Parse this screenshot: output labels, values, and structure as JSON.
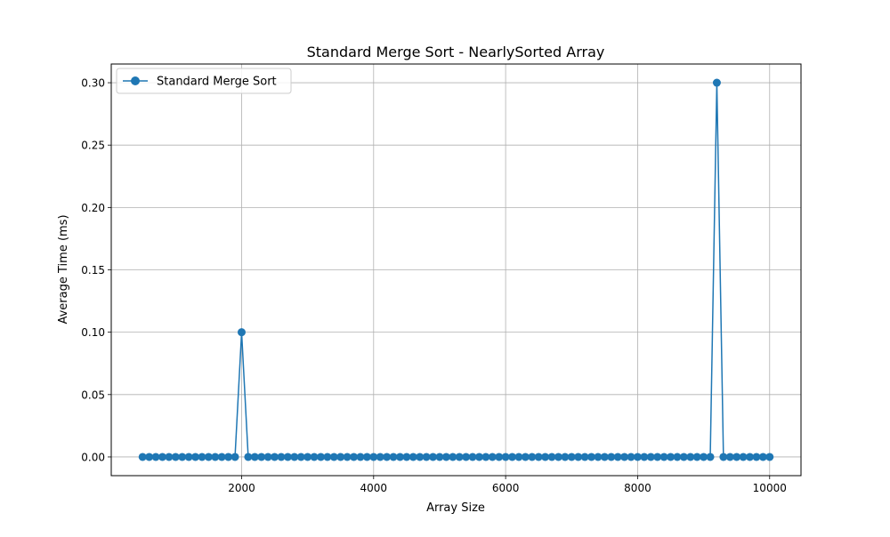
{
  "chart_data": {
    "type": "line",
    "title": "Standard Merge Sort - NearlySorted Array",
    "xlabel": "Array Size",
    "ylabel": "Average Time (ms)",
    "xlim": [
      25,
      10475
    ],
    "ylim": [
      -0.015,
      0.315
    ],
    "xticks": [
      2000,
      4000,
      6000,
      8000,
      10000
    ],
    "xtick_labels": [
      "2000",
      "4000",
      "6000",
      "8000",
      "10000"
    ],
    "yticks": [
      0.0,
      0.05,
      0.1,
      0.15,
      0.2,
      0.25,
      0.3
    ],
    "ytick_labels": [
      "0.00",
      "0.05",
      "0.10",
      "0.15",
      "0.20",
      "0.25",
      "0.30"
    ],
    "grid": true,
    "legend_position": "upper-left",
    "series": [
      {
        "name": "Standard Merge Sort",
        "color": "#1f77b4",
        "marker": "circle",
        "x": [
          500,
          600,
          700,
          800,
          900,
          1000,
          1100,
          1200,
          1300,
          1400,
          1500,
          1600,
          1700,
          1800,
          1900,
          2000,
          2100,
          2200,
          2300,
          2400,
          2500,
          2600,
          2700,
          2800,
          2900,
          3000,
          3100,
          3200,
          3300,
          3400,
          3500,
          3600,
          3700,
          3800,
          3900,
          4000,
          4100,
          4200,
          4300,
          4400,
          4500,
          4600,
          4700,
          4800,
          4900,
          5000,
          5100,
          5200,
          5300,
          5400,
          5500,
          5600,
          5700,
          5800,
          5900,
          6000,
          6100,
          6200,
          6300,
          6400,
          6500,
          6600,
          6700,
          6800,
          6900,
          7000,
          7100,
          7200,
          7300,
          7400,
          7500,
          7600,
          7700,
          7800,
          7900,
          8000,
          8100,
          8200,
          8300,
          8400,
          8500,
          8600,
          8700,
          8800,
          8900,
          9000,
          9100,
          9200,
          9300,
          9400,
          9500,
          9600,
          9700,
          9800,
          9900,
          10000
        ],
        "y": [
          0.0,
          0.0,
          0.0,
          0.0,
          0.0,
          0.0,
          0.0,
          0.0,
          0.0,
          0.0,
          0.0,
          0.0,
          0.0,
          0.0,
          0.0,
          0.1,
          0.0,
          0.0,
          0.0,
          0.0,
          0.0,
          0.0,
          0.0,
          0.0,
          0.0,
          0.0,
          0.0,
          0.0,
          0.0,
          0.0,
          0.0,
          0.0,
          0.0,
          0.0,
          0.0,
          0.0,
          0.0,
          0.0,
          0.0,
          0.0,
          0.0,
          0.0,
          0.0,
          0.0,
          0.0,
          0.0,
          0.0,
          0.0,
          0.0,
          0.0,
          0.0,
          0.0,
          0.0,
          0.0,
          0.0,
          0.0,
          0.0,
          0.0,
          0.0,
          0.0,
          0.0,
          0.0,
          0.0,
          0.0,
          0.0,
          0.0,
          0.0,
          0.0,
          0.0,
          0.0,
          0.0,
          0.0,
          0.0,
          0.0,
          0.0,
          0.0,
          0.0,
          0.0,
          0.0,
          0.0,
          0.0,
          0.0,
          0.0,
          0.0,
          0.0,
          0.0,
          0.0,
          0.3,
          0.0,
          0.0,
          0.0,
          0.0,
          0.0,
          0.0,
          0.0,
          0.0
        ]
      }
    ]
  }
}
